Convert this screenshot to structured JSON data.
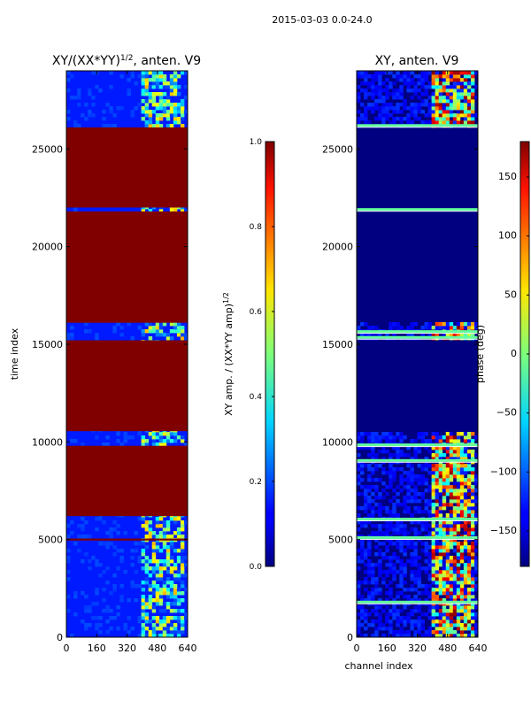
{
  "figure": {
    "suptitle": "2015-03-03 0.0-24.0"
  },
  "chart_data": [
    {
      "type": "heatmap",
      "title_main": "XY/(XX*YY)",
      "title_sup": "1/2",
      "title_rest": ", anten. V9",
      "xlabel": "",
      "ylabel": "time index",
      "xlim": [
        0,
        640
      ],
      "ylim": [
        0,
        29000
      ],
      "xticks": [
        0,
        160,
        320,
        480,
        640
      ],
      "yticks": [
        0,
        5000,
        10000,
        15000,
        20000,
        25000
      ],
      "colorbar": {
        "label_main": "XY amp. / (XX*YY amp)",
        "label_sup": "1/2",
        "range": [
          0.0,
          1.0
        ],
        "ticks": [
          "0.0",
          "0.2",
          "0.4",
          "0.6",
          "0.8",
          "1.0"
        ],
        "tick_values": [
          0.0,
          0.2,
          0.4,
          0.6,
          0.8,
          1.0
        ]
      },
      "background_value": 0.15,
      "saturated_bands": [
        {
          "y0": 10550,
          "y1": 15200,
          "value": 1.0
        },
        {
          "y0": 16100,
          "y1": 21800,
          "value": 1.0
        },
        {
          "y0": 22000,
          "y1": 26100,
          "value": 1.0
        },
        {
          "y0": 6200,
          "y1": 9800,
          "value": 1.0
        },
        {
          "y0": 4950,
          "y1": 5050,
          "value": 1.0
        }
      ],
      "hot_region": {
        "x0": 400,
        "x1": 620,
        "value": 0.5
      }
    },
    {
      "type": "heatmap",
      "title_main": "XY, anten. V9",
      "xlabel": "channel index",
      "ylabel": "",
      "xlim": [
        0,
        640
      ],
      "ylim": [
        0,
        29000
      ],
      "xticks": [
        0,
        160,
        320,
        480,
        640
      ],
      "yticks": [
        0,
        5000,
        10000,
        15000,
        20000,
        25000
      ],
      "colorbar": {
        "label_main": "phase (deg)",
        "range": [
          -180,
          180
        ],
        "ticks": [
          "−150",
          "−100",
          "−50",
          "0",
          "50",
          "100",
          "150"
        ],
        "tick_values": [
          -150,
          -100,
          -50,
          0,
          50,
          100,
          150
        ]
      },
      "background_value": -180,
      "stripe_rows": [
        1800,
        5100,
        6050,
        9050,
        9850,
        21900,
        15350,
        15650,
        26200
      ],
      "hot_region": {
        "x0": 390,
        "x1": 620,
        "value": 40
      }
    }
  ]
}
